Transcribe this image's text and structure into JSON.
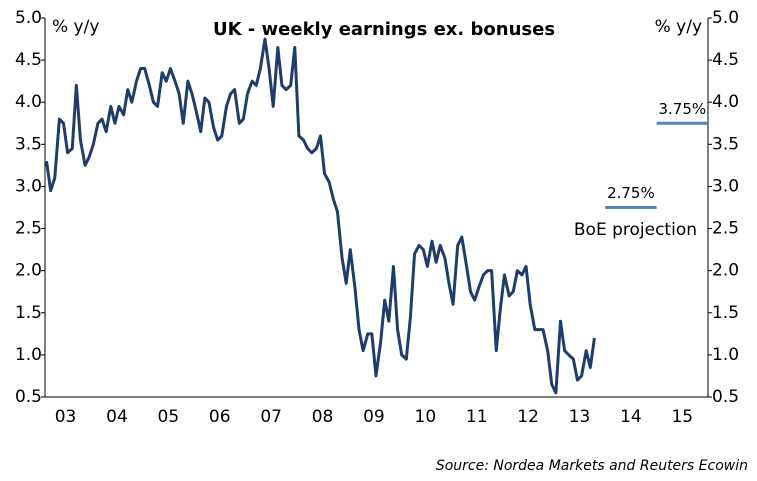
{
  "chart_data": {
    "type": "line",
    "title": "UK - weekly earnings ex. bonuses",
    "y_label": "% y/y",
    "y2_label": "% y/y",
    "source": "Source: Nordea Markets and Reuters Ecowin",
    "xlim": [
      2003.1,
      2016
    ],
    "xticks": [
      {
        "value": 2003.5,
        "label": "03"
      },
      {
        "value": 2004.5,
        "label": "04"
      },
      {
        "value": 2005.5,
        "label": "05"
      },
      {
        "value": 2006.5,
        "label": "06"
      },
      {
        "value": 2007.5,
        "label": "07"
      },
      {
        "value": 2008.5,
        "label": "08"
      },
      {
        "value": 2009.5,
        "label": "09"
      },
      {
        "value": 2010.5,
        "label": "10"
      },
      {
        "value": 2011.5,
        "label": "11"
      },
      {
        "value": 2012.5,
        "label": "12"
      },
      {
        "value": 2013.5,
        "label": "13"
      },
      {
        "value": 2014.5,
        "label": "14"
      },
      {
        "value": 2015.5,
        "label": "15"
      }
    ],
    "ylim": [
      0.5,
      5.0
    ],
    "yticks": [
      0.5,
      {
        "value": 1,
        "label": "1.0"
      },
      1.5,
      {
        "value": 2,
        "label": "2.0"
      },
      2.5,
      {
        "value": 3,
        "label": "3.0"
      },
      3.5,
      {
        "value": 4,
        "label": "4.0"
      },
      4.5,
      {
        "value": 5,
        "label": "5.0"
      }
    ],
    "series": [
      {
        "name": "Weekly earnings ex. bonuses",
        "color": "#1f3d6b",
        "x": [
          2003.13,
          2003.21,
          2003.29,
          2003.38,
          2003.46,
          2003.54,
          2003.63,
          2003.71,
          2003.79,
          2003.88,
          2003.96,
          2004.04,
          2004.13,
          2004.21,
          2004.29,
          2004.38,
          2004.46,
          2004.54,
          2004.63,
          2004.71,
          2004.79,
          2004.88,
          2004.96,
          2005.04,
          2005.13,
          2005.21,
          2005.29,
          2005.38,
          2005.46,
          2005.54,
          2005.63,
          2005.71,
          2005.79,
          2005.88,
          2005.96,
          2006.04,
          2006.13,
          2006.21,
          2006.29,
          2006.38,
          2006.46,
          2006.54,
          2006.63,
          2006.71,
          2006.79,
          2006.88,
          2006.96,
          2007.04,
          2007.13,
          2007.21,
          2007.29,
          2007.38,
          2007.46,
          2007.54,
          2007.63,
          2007.71,
          2007.79,
          2007.88,
          2007.96,
          2008.04,
          2008.13,
          2008.21,
          2008.29,
          2008.38,
          2008.46,
          2008.54,
          2008.63,
          2008.71,
          2008.79,
          2008.88,
          2008.96,
          2009.04,
          2009.13,
          2009.21,
          2009.29,
          2009.38,
          2009.46,
          2009.54,
          2009.63,
          2009.71,
          2009.79,
          2009.88,
          2009.96,
          2010.04,
          2010.13,
          2010.21,
          2010.29,
          2010.38,
          2010.46,
          2010.54,
          2010.63,
          2010.71,
          2010.79,
          2010.88,
          2010.96,
          2011.04,
          2011.13,
          2011.21,
          2011.29,
          2011.38,
          2011.46,
          2011.54,
          2011.63,
          2011.71,
          2011.79,
          2011.88,
          2011.96,
          2012.04,
          2012.13,
          2012.21,
          2012.29,
          2012.38,
          2012.46,
          2012.54,
          2012.63,
          2012.71,
          2012.79,
          2012.88,
          2012.96,
          2013.04,
          2013.13,
          2013.21,
          2013.29,
          2013.38,
          2013.46,
          2013.54,
          2013.63,
          2013.71,
          2013.79
        ],
        "values": [
          3.3,
          2.95,
          3.1,
          3.8,
          3.75,
          3.4,
          3.45,
          4.2,
          3.55,
          3.25,
          3.35,
          3.5,
          3.75,
          3.8,
          3.65,
          3.95,
          3.75,
          3.95,
          3.85,
          4.15,
          4.0,
          4.25,
          4.4,
          4.4,
          4.2,
          4.0,
          3.95,
          4.35,
          4.25,
          4.4,
          4.25,
          4.1,
          3.75,
          4.25,
          4.1,
          3.9,
          3.65,
          4.05,
          4.0,
          3.7,
          3.55,
          3.6,
          3.95,
          4.1,
          4.15,
          3.75,
          3.8,
          4.1,
          4.25,
          4.2,
          4.4,
          4.75,
          4.4,
          3.95,
          4.65,
          4.2,
          4.15,
          4.2,
          4.65,
          3.6,
          3.55,
          3.45,
          3.4,
          3.45,
          3.6,
          3.15,
          3.05,
          2.85,
          2.7,
          2.15,
          1.85,
          2.25,
          1.8,
          1.3,
          1.05,
          1.25,
          1.25,
          0.75,
          1.15,
          1.65,
          1.4,
          2.05,
          1.3,
          1.0,
          0.95,
          1.45,
          2.2,
          2.3,
          2.25,
          2.05,
          2.35,
          2.1,
          2.3,
          2.15,
          1.85,
          1.6,
          2.3,
          2.4,
          2.1,
          1.75,
          1.65,
          1.8,
          1.95,
          2.0,
          2.0,
          1.05,
          1.55,
          1.95,
          1.7,
          1.75,
          2.0,
          1.95,
          2.05,
          1.6,
          1.3,
          1.3,
          1.3,
          1.05,
          0.65,
          0.55,
          1.4,
          1.05,
          1.0,
          0.95,
          0.7,
          0.75,
          1.05,
          0.85,
          1.2
        ]
      },
      {
        "name": "BoE projection",
        "color": "#5b84b5",
        "x": [
          2014.5,
          2015.5
        ],
        "values": [
          2.75,
          3.75
        ],
        "value_labels": [
          "2.75%",
          "3.75%"
        ]
      }
    ]
  }
}
